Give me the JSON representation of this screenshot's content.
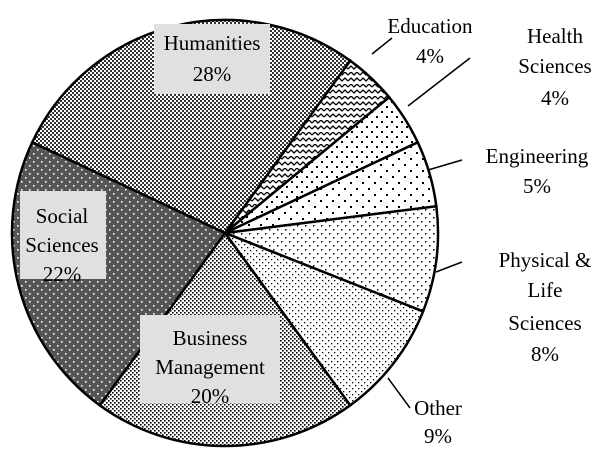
{
  "chart_data": {
    "type": "pie",
    "categories": [
      "Education",
      "Health Sciences",
      "Engineering",
      "Physical & Life Sciences",
      "Other",
      "Business Management",
      "Social Sciences",
      "Humanities"
    ],
    "values": [
      4,
      4,
      5,
      8,
      9,
      20,
      22,
      28
    ],
    "value_labels": [
      "4%",
      "4%",
      "5%",
      "8%",
      "9%",
      "20%",
      "22%",
      "28%"
    ]
  }
}
